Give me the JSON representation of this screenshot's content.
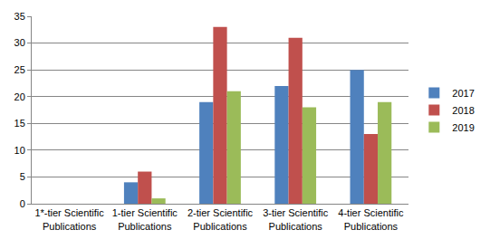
{
  "chart_data": {
    "type": "bar",
    "categories": [
      "1*-tier Scientific Publications",
      "1-tier Scientific Publications",
      "2-tier Scientific Publications",
      "3-tier Scientific Publications",
      "4-tier Scientific Publications"
    ],
    "series": [
      {
        "name": "2017",
        "color": "#4f81bd",
        "values": [
          0,
          4,
          19,
          22,
          25
        ]
      },
      {
        "name": "2018",
        "color": "#c0504d",
        "values": [
          0,
          6,
          33,
          31,
          13
        ]
      },
      {
        "name": "2019",
        "color": "#9bbb59",
        "values": [
          0,
          1,
          21,
          18,
          19
        ]
      }
    ],
    "ylim": [
      0,
      35
    ],
    "yticks": [
      0,
      5,
      10,
      15,
      20,
      25,
      30,
      35
    ],
    "grid": true,
    "legend": "right"
  }
}
